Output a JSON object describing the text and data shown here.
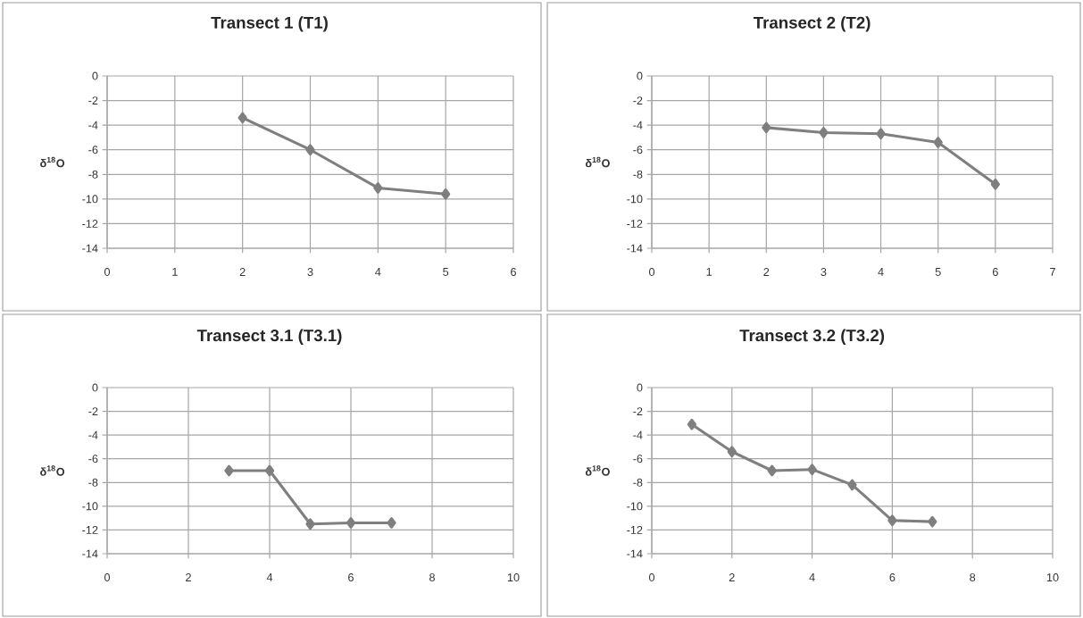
{
  "chart_data": [
    {
      "type": "line",
      "title": "Transect 1 (T1)",
      "ylabel": "δ$^{18}$O",
      "x": [
        2,
        3,
        4,
        5
      ],
      "values": [
        -3.4,
        -6.0,
        -9.1,
        -9.6
      ],
      "color": "#7f7f7f",
      "marker": "diamond",
      "xlim": [
        0,
        6
      ],
      "xticks": [
        0,
        1,
        2,
        3,
        4,
        5,
        6
      ],
      "ylim": [
        -14,
        0
      ],
      "yticks": [
        -14,
        -12,
        -10,
        -8,
        -6,
        -4,
        -2,
        0
      ],
      "grid": true
    },
    {
      "type": "line",
      "title": "Transect 2 (T2)",
      "ylabel": "δ$^{18}$O",
      "x": [
        2,
        3,
        4,
        5,
        6
      ],
      "values": [
        -4.2,
        -4.6,
        -4.7,
        -5.4,
        -8.8
      ],
      "color": "#7f7f7f",
      "marker": "diamond",
      "xlim": [
        0,
        7
      ],
      "xticks": [
        0,
        1,
        2,
        3,
        4,
        5,
        6,
        7
      ],
      "ylim": [
        -14,
        0
      ],
      "yticks": [
        -14,
        -12,
        -10,
        -8,
        -6,
        -4,
        -2,
        0
      ],
      "grid": true
    },
    {
      "type": "line",
      "title": "Transect 3.1 (T3.1)",
      "ylabel": "δ$^{18}$O",
      "x": [
        3,
        4,
        5,
        6,
        7
      ],
      "values": [
        -7.0,
        -7.0,
        -11.5,
        -11.4,
        -11.4
      ],
      "color": "#7f7f7f",
      "marker": "diamond",
      "xlim": [
        0,
        10
      ],
      "xticks": [
        0,
        2,
        4,
        6,
        8,
        10
      ],
      "ylim": [
        -14,
        0
      ],
      "yticks": [
        -14,
        -12,
        -10,
        -8,
        -6,
        -4,
        -2,
        0
      ],
      "grid": true
    },
    {
      "type": "line",
      "title": "Transect 3.2 (T3.2)",
      "ylabel": "δ$^{18}$O",
      "x": [
        1,
        2,
        3,
        4,
        5,
        6,
        7
      ],
      "values": [
        -3.1,
        -5.4,
        -7.0,
        -6.9,
        -8.2,
        -11.2,
        -11.3
      ],
      "color": "#7f7f7f",
      "marker": "diamond",
      "xlim": [
        0,
        10
      ],
      "xticks": [
        0,
        2,
        4,
        6,
        8,
        10
      ],
      "ylim": [
        -14,
        0
      ],
      "yticks": [
        -14,
        -12,
        -10,
        -8,
        -6,
        -4,
        -2,
        0
      ],
      "grid": true
    }
  ]
}
